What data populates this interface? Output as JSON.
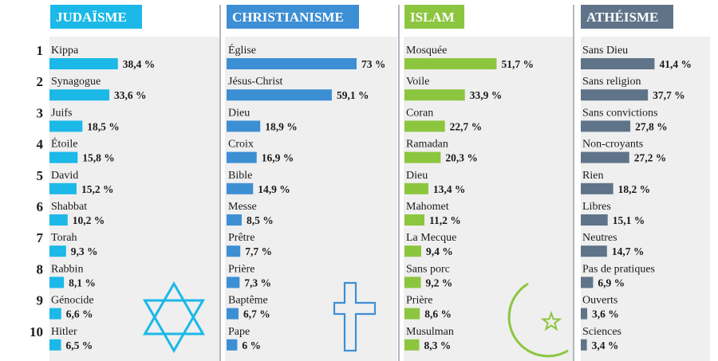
{
  "ranks": [
    "1",
    "2",
    "3",
    "4",
    "5",
    "6",
    "7",
    "8",
    "9",
    "10"
  ],
  "chart_data": [
    {
      "type": "bar",
      "title": "JUDAÏSME",
      "color": "#1bb8e8",
      "categories": [
        "Kippa",
        "Synagogue",
        "Juifs",
        "Étoile",
        "David",
        "Shabbat",
        "Torah",
        "Rabbin",
        "Génocide",
        "Hitler"
      ],
      "values": [
        38.4,
        33.6,
        18.5,
        15.8,
        15.2,
        10.2,
        9.3,
        8.1,
        6.6,
        6.5
      ],
      "labels": [
        "38,4 %",
        "33,6 %",
        "18,5 %",
        "15,8 %",
        "15,2 %",
        "10,2 %",
        "9,3 %",
        "8,1 %",
        "6,6 %",
        "6,5 %"
      ],
      "icon": "star-of-david-icon",
      "xlim": [
        0,
        73
      ]
    },
    {
      "type": "bar",
      "title": "CHRISTIANISME",
      "color": "#3d8fd4",
      "categories": [
        "Église",
        "Jésus-Christ",
        "Dieu",
        "Croix",
        "Bible",
        "Messe",
        "Prêtre",
        "Prière",
        "Baptême",
        "Pape"
      ],
      "values": [
        73,
        59.1,
        18.9,
        16.9,
        14.9,
        8.5,
        7.7,
        7.3,
        6.7,
        6
      ],
      "labels": [
        "73 %",
        "59,1 %",
        "18,9 %",
        "16,9 %",
        "14,9 %",
        "8,5 %",
        "7,7 %",
        "7,3 %",
        "6,7 %",
        "6 %"
      ],
      "icon": "cross-icon",
      "xlim": [
        0,
        73
      ]
    },
    {
      "type": "bar",
      "title": "ISLAM",
      "color": "#8cc63f",
      "categories": [
        "Mosquée",
        "Voile",
        "Coran",
        "Ramadan",
        "Dieu",
        "Mahomet",
        "La Mecque",
        "Sans porc",
        "Prière",
        "Musulman"
      ],
      "values": [
        51.7,
        33.9,
        22.7,
        20.3,
        13.4,
        11.2,
        9.4,
        9.2,
        8.6,
        8.3
      ],
      "labels": [
        "51,7 %",
        "33,9 %",
        "22,7 %",
        "20,3 %",
        "13,4 %",
        "11,2 %",
        "9,4 %",
        "9,2 %",
        "8,6 %",
        "8,3 %"
      ],
      "icon": "crescent-star-icon",
      "xlim": [
        0,
        73
      ]
    },
    {
      "type": "bar",
      "title": "ATHÉISME",
      "color": "#5f7489",
      "categories": [
        "Sans Dieu",
        "Sans religion",
        "Sans convictions",
        "Non-croyants",
        "Rien",
        "Libres",
        "Neutres",
        "Pas de pratiques",
        "Ouverts",
        "Sciences"
      ],
      "values": [
        41.4,
        37.7,
        27.8,
        27.2,
        18.2,
        15.1,
        14.7,
        6.9,
        3.6,
        3.4
      ],
      "labels": [
        "41,4 %",
        "37,7 %",
        "27,8 %",
        "27,2 %",
        "18,2 %",
        "15,1 %",
        "14,7 %",
        "6,9 %",
        "3,6 %",
        "3,4 %"
      ],
      "xlim": [
        0,
        73
      ]
    }
  ]
}
